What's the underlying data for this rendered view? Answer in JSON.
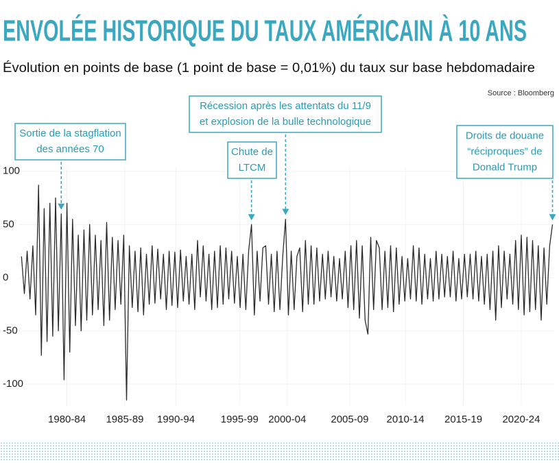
{
  "chart_data": {
    "type": "line",
    "title": "ENVOLÉE HISTORIQUE DU TAUX AMÉRICAIN À 10 ANS",
    "subtitle": "Évolution en points de base (1 point de base = 0,01%) du taux sur base hebdomadaire",
    "source": "Source : Bloomberg",
    "color": "#2b2b2b",
    "x": [
      1978.5,
      1978.75,
      1979,
      1979.25,
      1979.5,
      1979.75,
      1980,
      1980.25,
      1980.5,
      1980.75,
      1981,
      1981.25,
      1981.5,
      1981.75,
      1982,
      1982.25,
      1982.5,
      1982.75,
      1983,
      1983.25,
      1983.5,
      1983.75,
      1984,
      1984.25,
      1984.5,
      1984.75,
      1985,
      1985.25,
      1985.5,
      1985.75,
      1986,
      1986.25,
      1986.5,
      1986.75,
      1987,
      1987.25,
      1987.5,
      1987.75,
      1988,
      1988.25,
      1988.5,
      1988.75,
      1989,
      1989.25,
      1989.5,
      1989.75,
      1990,
      1990.25,
      1990.5,
      1990.75,
      1991,
      1991.25,
      1991.5,
      1991.75,
      1992,
      1992.25,
      1992.5,
      1992.75,
      1993,
      1993.25,
      1993.5,
      1993.75,
      1994,
      1994.25,
      1994.5,
      1994.75,
      1995,
      1995.25,
      1995.5,
      1995.75,
      1996,
      1996.25,
      1996.5,
      1996.75,
      1997,
      1997.25,
      1997.5,
      1997.75,
      1998,
      1998.25,
      1998.5,
      1998.75,
      1999,
      1999.25,
      1999.5,
      1999.75,
      2000,
      2000.25,
      2000.5,
      2000.75,
      2001,
      2001.25,
      2001.5,
      2001.75,
      2002,
      2002.25,
      2002.5,
      2002.75,
      2003,
      2003.25,
      2003.5,
      2003.75,
      2004,
      2004.25,
      2004.5,
      2004.75,
      2005,
      2005.25,
      2005.5,
      2005.75,
      2006,
      2006.25,
      2006.5,
      2006.75,
      2007,
      2007.25,
      2007.5,
      2007.75,
      2008,
      2008.25,
      2008.5,
      2008.75,
      2009,
      2009.25,
      2009.5,
      2009.75,
      2010,
      2010.25,
      2010.5,
      2010.75,
      2011,
      2011.25,
      2011.5,
      2011.75,
      2012,
      2012.25,
      2012.5,
      2012.75,
      2013,
      2013.25,
      2013.5,
      2013.75,
      2014,
      2014.25,
      2014.5,
      2014.75,
      2015,
      2015.25,
      2015.5,
      2015.75,
      2016,
      2016.25,
      2016.5,
      2016.75,
      2017,
      2017.25,
      2017.5,
      2017.75,
      2018,
      2018.25,
      2018.5,
      2018.75,
      2019,
      2019.25,
      2019.5,
      2019.75,
      2020,
      2020.25,
      2020.5,
      2020.75,
      2021,
      2021.25,
      2021.5,
      2021.75,
      2022,
      2022.25,
      2022.5,
      2022.75,
      2023,
      2023.25,
      2023.5,
      2023.75,
      2024,
      2024.25,
      2024.5,
      2024.75,
      2025,
      2025.25
    ],
    "values": [
      20,
      -15,
      25,
      -20,
      30,
      -35,
      87,
      -73,
      65,
      -60,
      70,
      -55,
      75,
      -50,
      60,
      -96,
      70,
      -70,
      55,
      -45,
      40,
      -50,
      45,
      -40,
      50,
      -35,
      40,
      -30,
      35,
      -45,
      52,
      -40,
      38,
      -30,
      35,
      -25,
      40,
      -115,
      30,
      -28,
      25,
      -32,
      28,
      -35,
      22,
      -25,
      30,
      -24,
      27,
      -20,
      22,
      -30,
      25,
      -26,
      24,
      -28,
      26,
      -22,
      20,
      -25,
      22,
      -30,
      35,
      -18,
      30,
      -22,
      22,
      -30,
      25,
      -28,
      30,
      -25,
      28,
      -20,
      25,
      -24,
      20,
      -28,
      22,
      -30,
      25,
      50,
      -35,
      25,
      -22,
      28,
      30,
      -25,
      22,
      -32,
      25,
      -30,
      20,
      55,
      -35,
      25,
      -30,
      20,
      28,
      -32,
      35,
      -25,
      30,
      -25,
      28,
      -22,
      22,
      -20,
      25,
      -18,
      20,
      -22,
      18,
      -20,
      25,
      -28,
      30,
      -30,
      35,
      -38,
      30,
      -40,
      -53,
      38,
      -30,
      35,
      28,
      -30,
      25,
      -28,
      30,
      -32,
      28,
      -25,
      20,
      -22,
      18,
      -20,
      30,
      -22,
      28,
      -25,
      22,
      -20,
      18,
      -22,
      25,
      -20,
      22,
      -18,
      20,
      -18,
      25,
      -22,
      18,
      -20,
      22,
      -18,
      22,
      -20,
      25,
      -22,
      20,
      -25,
      22,
      -30,
      25,
      -40,
      30,
      -28,
      25,
      -20,
      22,
      -25,
      35,
      -30,
      40,
      -35,
      38,
      -32,
      35,
      -30,
      30,
      -40,
      28,
      -25,
      30,
      50
    ],
    "xlim": [
      1978.3,
      2025.4
    ],
    "ylim": [
      -120,
      105
    ],
    "yticks": [
      100,
      50,
      0,
      -50,
      -100
    ],
    "xticks": [
      {
        "value": 1982.5,
        "label": "1980-84"
      },
      {
        "value": 1987.6,
        "label": "1985-89"
      },
      {
        "value": 1992.1,
        "label": "1990-94"
      },
      {
        "value": 1997.7,
        "label": "1995-99"
      },
      {
        "value": 2001.9,
        "label": "2000-04"
      },
      {
        "value": 2007.4,
        "label": "2005-09"
      },
      {
        "value": 2012.3,
        "label": "2010-14"
      },
      {
        "value": 2017.4,
        "label": "2015-19"
      },
      {
        "value": 2022.5,
        "label": "2020-24"
      }
    ],
    "annotations": [
      {
        "lines": [
          "Sortie de la stagflation",
          "des années 70"
        ],
        "x": 1982.0
      },
      {
        "lines": [
          "Chute de",
          "LTCM"
        ],
        "x": 1998.75
      },
      {
        "lines": [
          "Récession après les attentats du 11/9",
          "et explosion de la bulle technologique"
        ],
        "x": 2001.75
      },
      {
        "lines": [
          "Droits de douane",
          "“réciproques” de",
          "Donald Trump"
        ],
        "x": 2025.25
      }
    ]
  }
}
